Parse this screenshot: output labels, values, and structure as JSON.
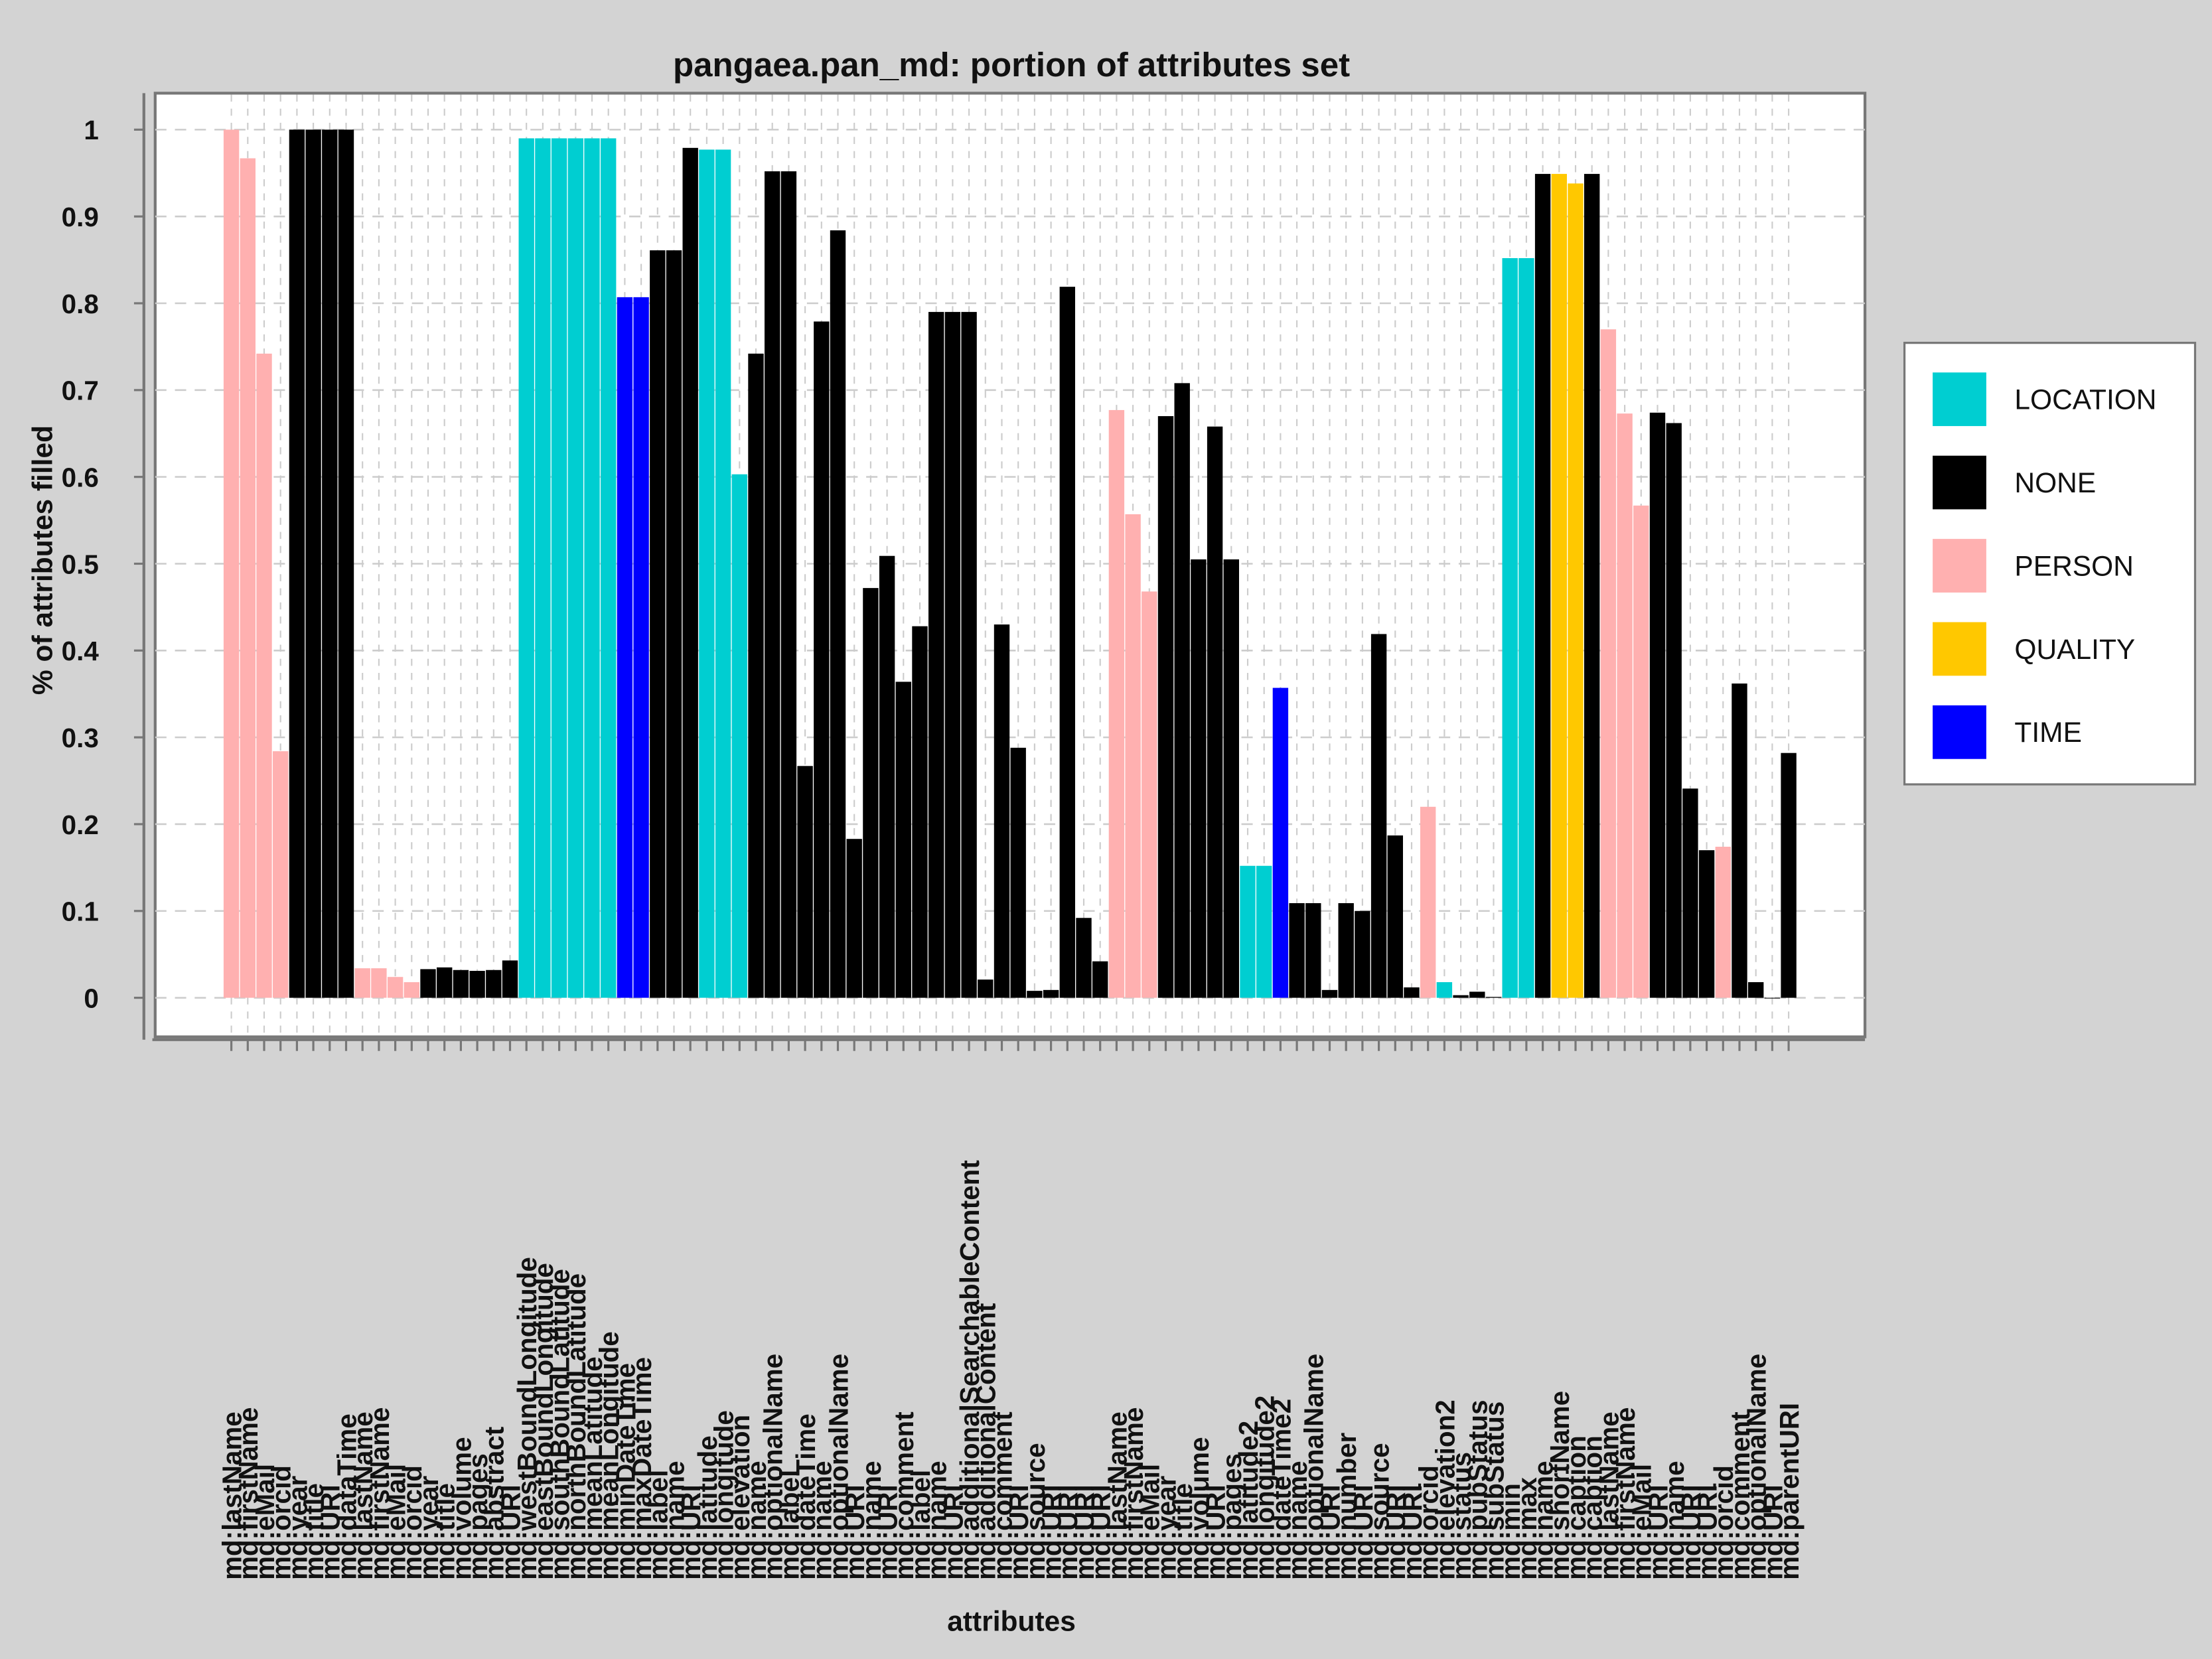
{
  "chart_data": {
    "type": "bar",
    "title": "pangaea.pan_md: portion of attributes set",
    "x_label": "attributes",
    "y_label": "% of attributes filled",
    "ylim": [
      -0.045,
      1.042
    ],
    "yticks": [
      0,
      0.1,
      0.2,
      0.3,
      0.4,
      0.5,
      0.6,
      0.7,
      0.8,
      0.9,
      1
    ],
    "grid": true,
    "legend_position": "right",
    "legend": [
      {
        "name": "LOCATION",
        "color": "#00ced1"
      },
      {
        "name": "NONE",
        "color": "#000000"
      },
      {
        "name": "PERSON",
        "color": "#ffb0b0"
      },
      {
        "name": "QUALITY",
        "color": "#ffc800"
      },
      {
        "name": "TIME",
        "color": "#0000ff"
      }
    ],
    "categories": [
      "md:lastName",
      "md:firstName",
      "md:eMail",
      "md:orcid",
      "md:year",
      "md:title",
      "md:URI",
      "md:dataTime",
      "md:lastName",
      "md:firstName",
      "md:eMail",
      "md:orcid",
      "md:year",
      "md:title",
      "md:volume",
      "md:pages",
      "md:abstract",
      "md:URI",
      "md:westBoundLongitude",
      "md:eastBoundLongitude",
      "md:southBoundLatitude",
      "md:northBoundLatitude",
      "md:meanLatitude",
      "md:meanLongitude",
      "md:minDateTime",
      "md:maxDateTime",
      "md:label",
      "md:name",
      "md:URI",
      "md:latitude",
      "md:longitude",
      "md:elevation",
      "md:name",
      "md:optionalName",
      "md:label",
      "md:dateTime",
      "md:name",
      "md:optionalName",
      "md:URI",
      "md:name",
      "md:URI",
      "md:comment",
      "md:label",
      "md:name",
      "md:URI",
      "md:additionalSearchableContent",
      "md:additionalContent",
      "md:comment",
      "md:URI",
      "md:source",
      "md:URI",
      "md:URI",
      "md:URI",
      "md:URI",
      "md:lastName",
      "md:firstName",
      "md:eMail",
      "md:year",
      "md:title",
      "md:volume",
      "md:URI",
      "md:pages",
      "md:latitude2",
      "md:longitude2",
      "md:dateTime2",
      "md:name",
      "md:optionalName",
      "md:URI",
      "md:number",
      "md:URI",
      "md:source",
      "md:URI",
      "md:URI",
      "md:orcid",
      "md:elevation2",
      "md:status",
      "md:pubStatus",
      "md:subStatus",
      "md:min",
      "md:max",
      "md:name",
      "md:shortName",
      "md:caption",
      "md:caption",
      "md:lastName",
      "md:firstName",
      "md:eMail",
      "md:URI",
      "md:name",
      "md:URI",
      "md:URI",
      "md:orcid",
      "md:comment",
      "md:optionalName",
      "md:URI",
      "md:parentURI"
    ],
    "values": [
      1.0,
      0.967,
      0.742,
      0.284,
      1.0,
      1.0,
      1.0,
      1.0,
      0.034,
      0.034,
      0.024,
      0.018,
      0.033,
      0.035,
      0.032,
      0.031,
      0.032,
      0.043,
      0.99,
      0.99,
      0.99,
      0.99,
      0.99,
      0.99,
      0.807,
      0.807,
      0.861,
      0.861,
      0.979,
      0.977,
      0.977,
      0.603,
      0.742,
      0.952,
      0.952,
      0.267,
      0.779,
      0.884,
      0.183,
      0.472,
      0.509,
      0.364,
      0.428,
      0.79,
      0.79,
      0.79,
      0.021,
      0.43,
      0.288,
      0.008,
      0.009,
      0.819,
      0.092,
      0.042,
      0.677,
      0.557,
      0.468,
      0.67,
      0.708,
      0.505,
      0.658,
      0.505,
      0.152,
      0.152,
      0.357,
      0.109,
      0.109,
      0.009,
      0.109,
      0.1,
      0.419,
      0.187,
      0.012,
      0.22,
      0.018,
      0.003,
      0.007,
      0.001,
      0.852,
      0.852,
      0.949,
      0.949,
      0.938,
      0.949,
      0.77,
      0.673,
      0.567,
      0.674,
      0.662,
      0.241,
      0.17,
      0.174,
      0.362,
      0.018,
      0,
      0.282
    ],
    "groups": [
      "PERSON",
      "PERSON",
      "PERSON",
      "PERSON",
      "NONE",
      "NONE",
      "NONE",
      "NONE",
      "PERSON",
      "PERSON",
      "PERSON",
      "PERSON",
      "NONE",
      "NONE",
      "NONE",
      "NONE",
      "NONE",
      "NONE",
      "LOCATION",
      "LOCATION",
      "LOCATION",
      "LOCATION",
      "LOCATION",
      "LOCATION",
      "TIME",
      "TIME",
      "NONE",
      "NONE",
      "NONE",
      "LOCATION",
      "LOCATION",
      "LOCATION",
      "NONE",
      "NONE",
      "NONE",
      "NONE",
      "NONE",
      "NONE",
      "NONE",
      "NONE",
      "NONE",
      "NONE",
      "NONE",
      "NONE",
      "NONE",
      "NONE",
      "NONE",
      "NONE",
      "NONE",
      "NONE",
      "NONE",
      "NONE",
      "NONE",
      "NONE",
      "PERSON",
      "PERSON",
      "PERSON",
      "NONE",
      "NONE",
      "NONE",
      "NONE",
      "NONE",
      "LOCATION",
      "LOCATION",
      "TIME",
      "NONE",
      "NONE",
      "NONE",
      "NONE",
      "NONE",
      "NONE",
      "NONE",
      "NONE",
      "PERSON",
      "LOCATION",
      "NONE",
      "NONE",
      "NONE",
      "LOCATION",
      "LOCATION",
      "NONE",
      "QUALITY",
      "QUALITY",
      "NONE",
      "PERSON",
      "PERSON",
      "PERSON",
      "NONE",
      "NONE",
      "NONE",
      "NONE",
      "PERSON",
      "NONE",
      "NONE",
      "NONE",
      "NONE"
    ]
  }
}
